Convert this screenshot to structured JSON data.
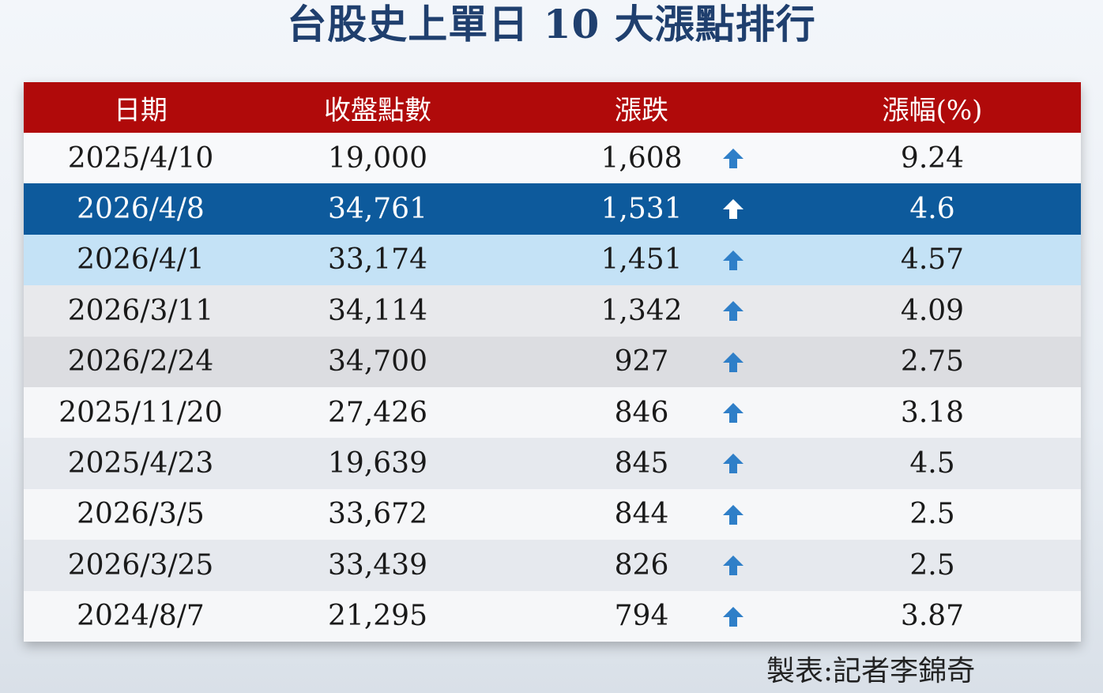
{
  "header": {
    "title": "台股史上單日 10 大漲點排行"
  },
  "table": {
    "columns": [
      "日期",
      "收盤點數",
      "漲跌",
      "漲幅(%)"
    ],
    "rows": [
      [
        "2025/4/10",
        "19,000",
        "1,608",
        "9.24"
      ],
      [
        "2026/4/8",
        "34,761",
        "1,531",
        "4.6"
      ],
      [
        "2026/4/1",
        "33,174",
        "1,451",
        "4.57"
      ],
      [
        "2026/3/11",
        "34,114",
        "1,342",
        "4.09"
      ],
      [
        "2026/2/24",
        "34,700",
        "927",
        "2.75"
      ],
      [
        "2025/11/20",
        "27,426",
        "846",
        "3.18"
      ],
      [
        "2025/4/23",
        "19,639",
        "845",
        "4.5"
      ],
      [
        "2026/3/5",
        "33,672",
        "844",
        "2.5"
      ],
      [
        "2026/3/25",
        "33,439",
        "826",
        "2.5"
      ],
      [
        "2024/8/7",
        "21,295",
        "794",
        "3.87"
      ]
    ]
  },
  "footer": {
    "credit": "製表:記者李錦奇"
  }
}
